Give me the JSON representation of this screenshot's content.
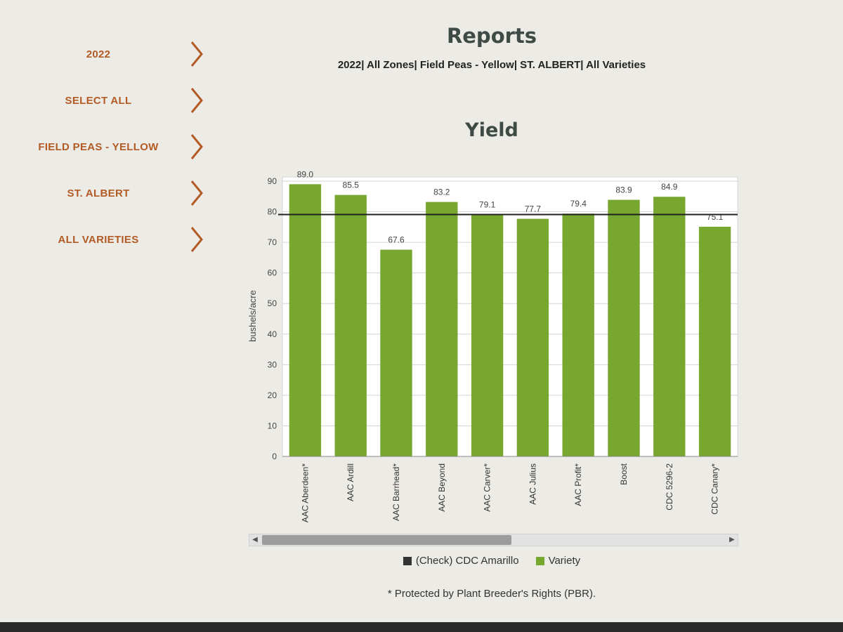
{
  "sidebar": {
    "items": [
      {
        "label": "2022"
      },
      {
        "label": "SELECT ALL"
      },
      {
        "label": "FIELD PEAS - YELLOW"
      },
      {
        "label": "ST. ALBERT"
      },
      {
        "label": "ALL VARIETIES"
      }
    ],
    "chevron_icon": "chevron-right-icon",
    "accent_color": "#b35b25"
  },
  "header": {
    "title": "Reports",
    "filters": "2022| All Zones| Field Peas - Yellow| ST. ALBERT| All Varieties"
  },
  "chart_data": {
    "type": "bar",
    "title": "Yield",
    "ylabel": "bushels/acre",
    "xlabel": "",
    "ylim": [
      0,
      90
    ],
    "yticks": [
      0,
      10,
      20,
      30,
      40,
      50,
      60,
      70,
      80,
      90
    ],
    "categories": [
      "AAC Aberdeen*",
      "AAC Ardill",
      "AAC Barrhead*",
      "AAC Beyond",
      "AAC Carver*",
      "AAC Julius",
      "AAC Profit*",
      "Boost",
      "CDC 5296-2",
      "CDC Canary*"
    ],
    "series": [
      {
        "name": "Variety",
        "values": [
          89.0,
          85.5,
          67.6,
          83.2,
          79.1,
          77.7,
          79.4,
          83.9,
          84.9,
          75.1
        ],
        "color": "#77a72e"
      }
    ],
    "value_labels": [
      "89.0",
      "85.5",
      "67.6",
      "83.2",
      "79.1",
      "77.7",
      "79.4",
      "83.9",
      "84.9",
      "75.1"
    ],
    "check_line": {
      "name": "(Check) CDC Amarillo",
      "value": 79.1,
      "color": "#222222"
    },
    "grid": true,
    "legend_position": "bottom"
  },
  "legend": {
    "check_label": "(Check) CDC Amarillo",
    "check_color": "#333333",
    "variety_label": "Variety",
    "variety_color": "#77a72e"
  },
  "footnote": "* Protected by Plant Breeder's Rights (PBR)."
}
